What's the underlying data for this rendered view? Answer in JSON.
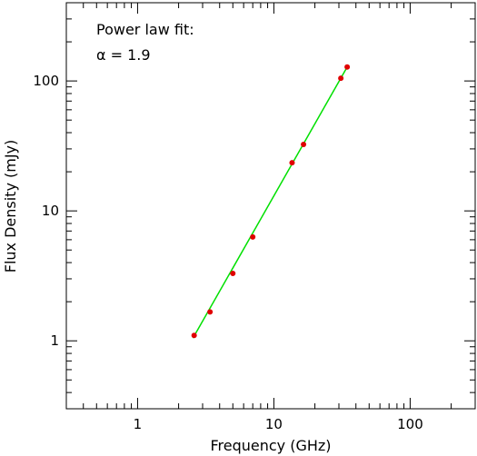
{
  "chart_data": {
    "type": "scatter",
    "xscale": "log",
    "yscale": "log",
    "xlabel": "Frequency (GHz)",
    "ylabel": "Flux Density (mJy)",
    "xlim": [
      0.3,
      300
    ],
    "ylim": [
      0.3,
      400
    ],
    "xticks": [
      1,
      10,
      100
    ],
    "xtick_labels": [
      "1",
      "10",
      "100"
    ],
    "yticks": [
      1,
      10,
      100
    ],
    "ytick_labels": [
      "1",
      "10",
      "100"
    ],
    "grid": false,
    "annotations": [
      "Power law fit:",
      "α = 1.9"
    ],
    "series": [
      {
        "kind": "points",
        "color": "#e00000",
        "x": [
          2.6,
          3.4,
          5.0,
          7.0,
          13.6,
          16.5,
          31.0,
          34.5
        ],
        "y": [
          1.1,
          1.67,
          3.3,
          6.3,
          23.5,
          32.5,
          105,
          128
        ]
      },
      {
        "kind": "line",
        "color": "#00e000",
        "x": [
          2.55,
          34.5
        ],
        "y": [
          1.05,
          128
        ]
      }
    ]
  }
}
